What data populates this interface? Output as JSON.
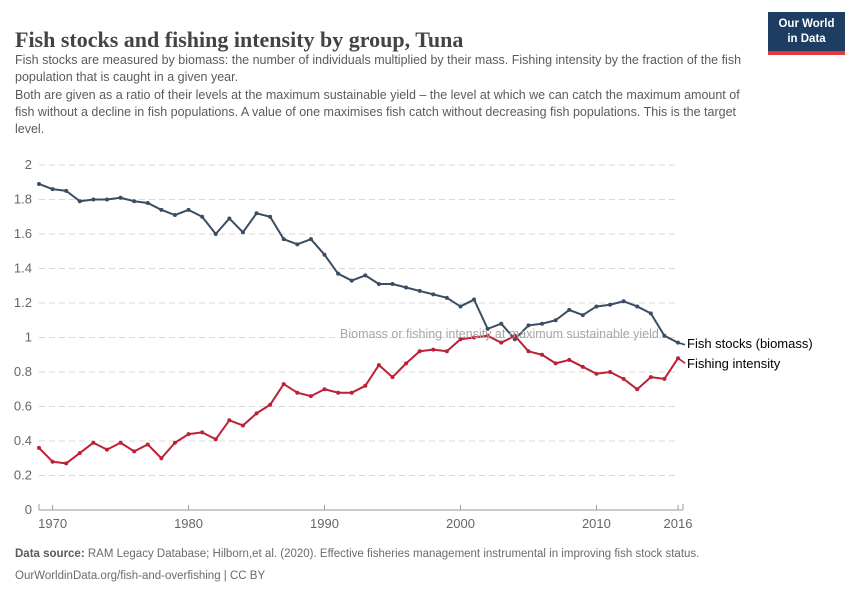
{
  "header": {
    "title": "Fish stocks and fishing intensity by group, Tuna",
    "subtitle_p1": "Fish stocks are measured by biomass: the number of individuals multiplied by their mass. Fishing intensity by the fraction of the fish population that is caught in a given year.",
    "subtitle_p2": "Both are given as a ratio of their levels at the maximum sustainable yield – the level at which we can catch the maximum amount of fish without a decline in fish populations. A value of one maximises fish catch without decreasing fish populations. This is the target level.",
    "logo": {
      "line1": "Our World",
      "line2": "in Data"
    }
  },
  "colors": {
    "fish_stocks_line": "#3b4d63",
    "fishing_intensity_line": "#bc2136",
    "logo_navy": "#1d3d63",
    "logo_red_stripe": "#e5353e",
    "grid": "#d8d8d8",
    "axis": "#999999",
    "tick_text": "#666666",
    "annotation_text": "#a6a6a6"
  },
  "chart_data": {
    "type": "line",
    "title": "Fish stocks and fishing intensity by group, Tuna",
    "xlabel": "",
    "ylabel": "",
    "xlim": [
      1969,
      2016
    ],
    "ylim": [
      0,
      2
    ],
    "grid": "horizontal dashed",
    "legend_position": "right of line ends",
    "annotation": "Biomass or fishing intensity at maximum sustainable yield",
    "annotation_y": 1,
    "x_ticks": [
      1970,
      1980,
      1990,
      2000,
      2010,
      2016
    ],
    "y_ticks": [
      0,
      0.2,
      0.4,
      0.6,
      0.8,
      1,
      1.2,
      1.4,
      1.6,
      1.8,
      2
    ],
    "y_tick_labels": [
      "0",
      "0.2",
      "0.4",
      "0.6",
      "0.8",
      "1",
      "1.2",
      "1.4",
      "1.6",
      "1.8",
      "2"
    ],
    "x": [
      1969,
      1970,
      1971,
      1972,
      1973,
      1974,
      1975,
      1976,
      1977,
      1978,
      1979,
      1980,
      1981,
      1982,
      1983,
      1984,
      1985,
      1986,
      1987,
      1988,
      1989,
      1990,
      1991,
      1992,
      1993,
      1994,
      1995,
      1996,
      1997,
      1998,
      1999,
      2000,
      2001,
      2002,
      2003,
      2004,
      2005,
      2006,
      2007,
      2008,
      2009,
      2010,
      2011,
      2012,
      2013,
      2014,
      2015,
      2016
    ],
    "series": [
      {
        "name": "Fish stocks (biomass)",
        "color": "#3b4d63",
        "values": [
          1.89,
          1.86,
          1.85,
          1.79,
          1.8,
          1.8,
          1.81,
          1.79,
          1.78,
          1.74,
          1.71,
          1.74,
          1.7,
          1.6,
          1.69,
          1.61,
          1.72,
          1.7,
          1.57,
          1.54,
          1.57,
          1.48,
          1.37,
          1.33,
          1.36,
          1.31,
          1.31,
          1.29,
          1.27,
          1.25,
          1.23,
          1.18,
          1.22,
          1.05,
          1.08,
          0.99,
          1.07,
          1.08,
          1.1,
          1.16,
          1.13,
          1.18,
          1.19,
          1.21,
          1.18,
          1.14,
          1.01,
          0.97
        ]
      },
      {
        "name": "Fishing intensity",
        "color": "#bc2136",
        "values": [
          0.36,
          0.28,
          0.27,
          0.33,
          0.39,
          0.35,
          0.39,
          0.34,
          0.38,
          0.3,
          0.39,
          0.44,
          0.45,
          0.41,
          0.52,
          0.49,
          0.56,
          0.61,
          0.73,
          0.68,
          0.66,
          0.7,
          0.68,
          0.68,
          0.72,
          0.84,
          0.77,
          0.85,
          0.92,
          0.93,
          0.92,
          0.99,
          1.0,
          1.01,
          0.97,
          1.01,
          0.92,
          0.9,
          0.85,
          0.87,
          0.83,
          0.79,
          0.8,
          0.76,
          0.7,
          0.77,
          0.76,
          0.88
        ]
      }
    ]
  },
  "footer": {
    "datasource_label": "Data source:",
    "datasource_text": " RAM Legacy Database; Hilborn,et al. (2020). Effective fisheries management instrumental in improving fish stock status.",
    "link_line": "OurWorldinData.org/fish-and-overfishing | CC BY"
  }
}
